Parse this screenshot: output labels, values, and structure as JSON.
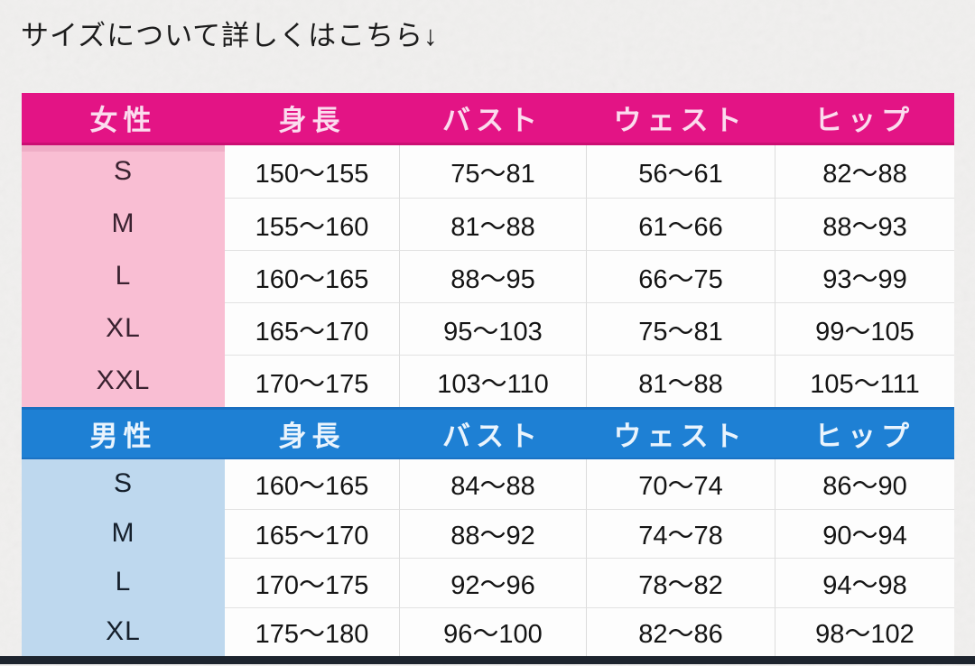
{
  "title": "サイズについて詳しくはこちら↓",
  "chart_data": [
    {
      "type": "table",
      "title": "女性",
      "columns": [
        "女性",
        "身長",
        "バスト",
        "ウェスト",
        "ヒップ"
      ],
      "rows": [
        [
          "S",
          "150〜155",
          "75〜81",
          "56〜61",
          "82〜88"
        ],
        [
          "M",
          "155〜160",
          "81〜88",
          "61〜66",
          "88〜93"
        ],
        [
          "L",
          "160〜165",
          "88〜95",
          "66〜75",
          "93〜99"
        ],
        [
          "XL",
          "165〜170",
          "95〜103",
          "75〜81",
          "99〜105"
        ],
        [
          "XXL",
          "170〜175",
          "103〜110",
          "81〜88",
          "105〜111"
        ]
      ]
    },
    {
      "type": "table",
      "title": "男性",
      "columns": [
        "男性",
        "身長",
        "バスト",
        "ウェスト",
        "ヒップ"
      ],
      "rows": [
        [
          "S",
          "160〜165",
          "84〜88",
          "70〜74",
          "86〜90"
        ],
        [
          "M",
          "165〜170",
          "88〜92",
          "74〜78",
          "90〜94"
        ],
        [
          "L",
          "170〜175",
          "92〜96",
          "78〜82",
          "94〜98"
        ],
        [
          "XL",
          "175〜180",
          "96〜100",
          "82〜86",
          "98〜102"
        ]
      ]
    }
  ],
  "colors": {
    "women_header_bg": "#e31485",
    "women_label_bg": "#f9bed3",
    "men_header_bg": "#1e80d4",
    "men_label_bg": "#bed8ee",
    "page_bg": "#f0efee",
    "cell_bg": "#fdfdfd",
    "bottom_rule": "#1d242e"
  }
}
